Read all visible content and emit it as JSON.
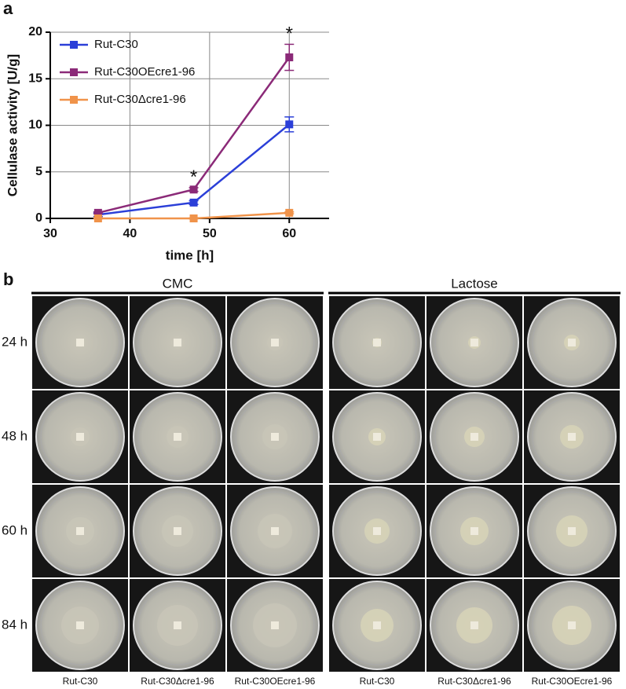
{
  "panel_labels": [
    "a",
    "b"
  ],
  "chart_data": {
    "type": "line",
    "x_label": "time [h]",
    "y_label": "Cellulase activity [U/g]",
    "x": [
      36,
      48,
      60
    ],
    "series": [
      {
        "name": "Rut-C30",
        "color": "#2b3fd8",
        "values": [
          0.4,
          1.7,
          10.1
        ],
        "errors": [
          0.2,
          0.2,
          0.8
        ]
      },
      {
        "name": "Rut-C30OEcre1-96",
        "color": "#8b2a78",
        "values": [
          0.6,
          3.1,
          17.3
        ],
        "errors": [
          0.1,
          0.2,
          1.4
        ]
      },
      {
        "name": "Rut-C30Δcre1-96",
        "color": "#f0934a",
        "values": [
          0.0,
          0.0,
          0.6
        ],
        "errors": [
          0.05,
          0.05,
          0.1
        ]
      }
    ],
    "annotations": [
      {
        "text": "*",
        "x": 48
      },
      {
        "text": "*",
        "x": 60
      }
    ],
    "xlim": [
      30,
      65
    ],
    "xticks": [
      30,
      40,
      50,
      60
    ],
    "ylim": [
      0,
      20
    ],
    "yticks": [
      0,
      5,
      10,
      15,
      20
    ],
    "grid": true,
    "legend": "upper-left"
  },
  "plates": {
    "media": [
      "CMC",
      "Lactose"
    ],
    "times": [
      "24 h",
      "48 h",
      "60 h",
      "84 h"
    ],
    "strains": [
      "Rut-C30",
      "Rut-C30Δcre1-96",
      "Rut-C30OEcre1-96"
    ]
  }
}
